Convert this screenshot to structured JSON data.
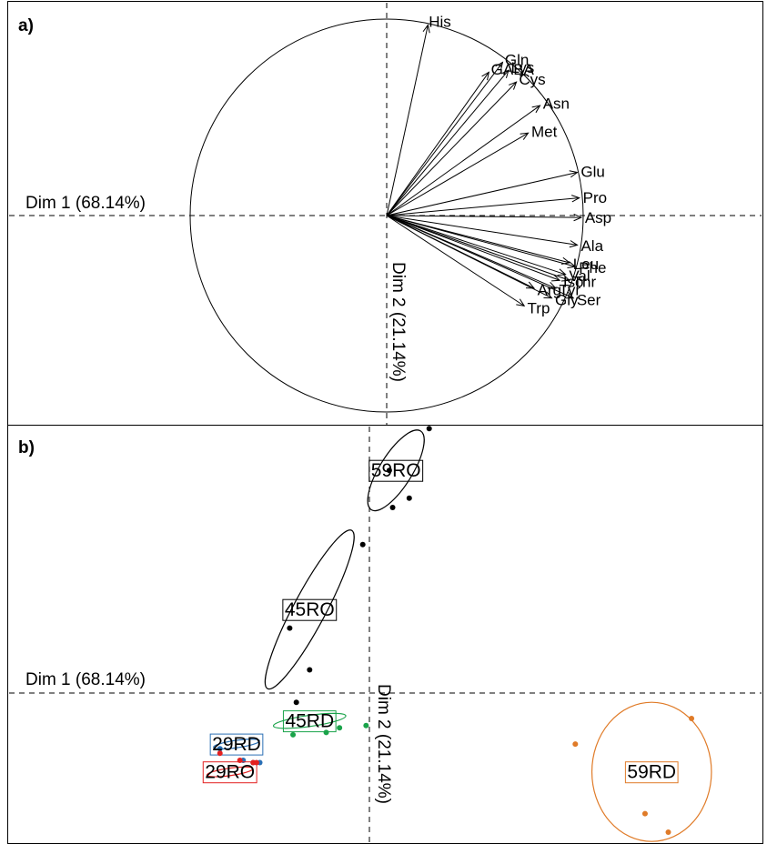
{
  "chart_data": [
    {
      "type": "scatter",
      "panel_label": "a)",
      "xlabel": "Dim 1 (68.14%)",
      "ylabel": "Dim 2 (21.14%)",
      "xlim": [
        -1.0,
        1.0
      ],
      "ylim": [
        -1.0,
        1.0
      ],
      "correlation_circle": true,
      "arrows": [
        {
          "label": "His",
          "x": 0.21,
          "y": 0.97
        },
        {
          "label": "Gln",
          "x": 0.59,
          "y": 0.78
        },
        {
          "label": "GABA",
          "x": 0.52,
          "y": 0.73
        },
        {
          "label": "Lys",
          "x": 0.62,
          "y": 0.74
        },
        {
          "label": "Cys",
          "x": 0.66,
          "y": 0.68
        },
        {
          "label": "Asn",
          "x": 0.78,
          "y": 0.56
        },
        {
          "label": "Met",
          "x": 0.72,
          "y": 0.42
        },
        {
          "label": "Glu",
          "x": 0.97,
          "y": 0.22
        },
        {
          "label": "Pro",
          "x": 0.98,
          "y": 0.09
        },
        {
          "label": "Asp",
          "x": 0.99,
          "y": -0.01
        },
        {
          "label": "Ala",
          "x": 0.97,
          "y": -0.15
        },
        {
          "label": "Leu",
          "x": 0.93,
          "y": -0.24
        },
        {
          "label": "Phe",
          "x": 0.96,
          "y": -0.26
        },
        {
          "label": "Val",
          "x": 0.91,
          "y": -0.3
        },
        {
          "label": "Thr",
          "x": 0.93,
          "y": -0.33
        },
        {
          "label": "Iso",
          "x": 0.88,
          "y": -0.33
        },
        {
          "label": "Tyr",
          "x": 0.86,
          "y": -0.37
        },
        {
          "label": "Arg",
          "x": 0.75,
          "y": -0.37
        },
        {
          "label": "Gly",
          "x": 0.84,
          "y": -0.42
        },
        {
          "label": "Ser",
          "x": 0.95,
          "y": -0.42
        },
        {
          "label": "Trp",
          "x": 0.7,
          "y": -0.46
        }
      ]
    },
    {
      "type": "scatter",
      "panel_label": "b)",
      "xlabel": "Dim 1 (68.14%)",
      "ylabel": "Dim 2 (21.14%)",
      "xlim": [
        -10,
        11
      ],
      "ylim": [
        -4.2,
        6.5
      ],
      "groups": [
        {
          "name": "59RO",
          "color": "#000000",
          "centroid": [
            0.8,
            4.8
          ],
          "points": [
            [
              1.8,
              5.7
            ],
            [
              0.6,
              4.8
            ],
            [
              1.2,
              4.2
            ],
            [
              0.7,
              4.0
            ]
          ],
          "ellipse": {
            "rx": 1.4,
            "ry": 0.35,
            "angle_deg": 58
          }
        },
        {
          "name": "45RO",
          "color": "#000000",
          "centroid": [
            -1.8,
            1.8
          ],
          "points": [
            [
              -0.2,
              3.2
            ],
            [
              -2.4,
              1.4
            ],
            [
              -1.8,
              0.5
            ],
            [
              -2.2,
              -0.2
            ]
          ],
          "ellipse": {
            "rx": 2.7,
            "ry": 0.35,
            "angle_deg": 62
          }
        },
        {
          "name": "45RD",
          "color": "#1aa34a",
          "centroid": [
            -1.8,
            -0.6
          ],
          "points": [
            [
              -2.3,
              -0.9
            ],
            [
              -1.3,
              -0.85
            ],
            [
              -0.1,
              -0.7
            ],
            [
              -0.9,
              -0.75
            ]
          ],
          "ellipse": {
            "rx": 1.1,
            "ry": 0.12,
            "angle_deg": 8
          }
        },
        {
          "name": "29RD",
          "color": "#2a6fb5",
          "centroid": [
            -4.0,
            -1.1
          ],
          "points": [
            [
              -4.5,
              -1.2
            ],
            [
              -3.8,
              -1.45
            ],
            [
              -3.5,
              -1.5
            ],
            [
              -3.3,
              -1.5
            ]
          ],
          "ellipse": {
            "rx": 0.7,
            "ry": 0.08,
            "angle_deg": 8
          }
        },
        {
          "name": "29RO",
          "color": "#e32020",
          "centroid": [
            -4.2,
            -1.7
          ],
          "points": [
            [
              -4.5,
              -1.3
            ],
            [
              -3.9,
              -1.45
            ],
            [
              -3.5,
              -1.5
            ],
            [
              -3.4,
              -1.5
            ]
          ],
          "ellipse": {
            "rx": 0.7,
            "ry": 0.08,
            "angle_deg": 8
          }
        },
        {
          "name": "59RD",
          "color": "#e07b28",
          "centroid": [
            8.5,
            -1.7
          ],
          "points": [
            [
              9.7,
              -0.55
            ],
            [
              6.2,
              -1.1
            ],
            [
              8.3,
              -2.6
            ],
            [
              9.0,
              -3.0
            ]
          ],
          "ellipse": {
            "rx": 1.8,
            "ry": 1.5,
            "angle_deg": 0
          }
        }
      ]
    }
  ]
}
